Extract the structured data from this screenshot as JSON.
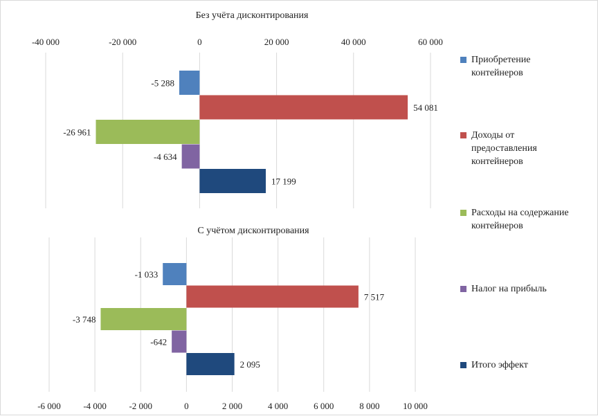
{
  "chart_data": [
    {
      "type": "bar",
      "orientation": "horizontal",
      "title": "Без учёта дисконтирования",
      "xlim": [
        -40000,
        60000
      ],
      "xticks": [
        "-40 000",
        "-20 000",
        "0",
        "20 000",
        "40 000",
        "60 000"
      ],
      "xtick_values": [
        -40000,
        -20000,
        0,
        20000,
        40000,
        60000
      ],
      "x_axis_position": "top",
      "grid": true,
      "series": [
        {
          "name": "Приобретение контейнеров",
          "value": -5288,
          "label": "-5 288"
        },
        {
          "name": "Доходы от предоставления контейнеров",
          "value": 54081,
          "label": "54 081"
        },
        {
          "name": "Расходы на содержание контейнеров",
          "value": -26961,
          "label": "-26 961"
        },
        {
          "name": "Налог на прибыль",
          "value": -4634,
          "label": "-4 634"
        },
        {
          "name": "Итого эффект",
          "value": 17199,
          "label": "17 199"
        }
      ]
    },
    {
      "type": "bar",
      "orientation": "horizontal",
      "title": "С учётом дисконтирования",
      "xlim": [
        -6000,
        10000
      ],
      "xticks": [
        "-6 000",
        "-4 000",
        "-2 000",
        "0",
        "2 000",
        "4 000",
        "6 000",
        "8 000",
        "10 000"
      ],
      "xtick_values": [
        -6000,
        -4000,
        -2000,
        0,
        2000,
        4000,
        6000,
        8000,
        10000
      ],
      "x_axis_position": "bottom",
      "grid": true,
      "series": [
        {
          "name": "Приобретение контейнеров",
          "value": -1033,
          "label": "-1 033"
        },
        {
          "name": "Доходы от предоставления контейнеров",
          "value": 7517,
          "label": "7 517"
        },
        {
          "name": "Расходы на содержание контейнеров",
          "value": -3748,
          "label": "-3 748"
        },
        {
          "name": "Налог на прибыль",
          "value": -642,
          "label": "-642"
        },
        {
          "name": "Итого эффект",
          "value": 2095,
          "label": "2 095"
        }
      ]
    }
  ],
  "legend": {
    "placement": "right",
    "items": [
      {
        "label": "Приобретение\nконтейнеров",
        "color": "#4f81bd"
      },
      {
        "label": "Доходы от\nпредоставления\nконтейнеров",
        "color": "#c0504d"
      },
      {
        "label": "Расходы на содержание\nконтейнеров",
        "color": "#9bbb59"
      },
      {
        "label": "Налог на прибыль",
        "color": "#8064a2"
      },
      {
        "label": "Итого эффект",
        "color": "#1f497d"
      }
    ]
  }
}
